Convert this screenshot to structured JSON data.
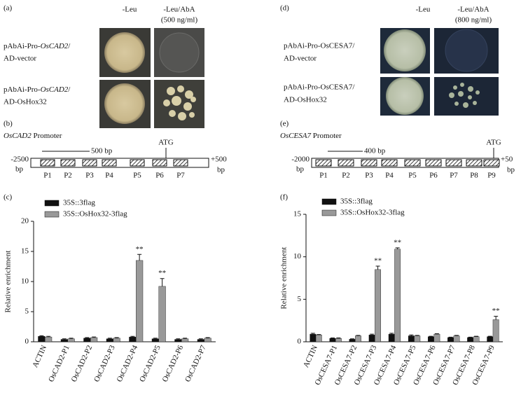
{
  "panel_a": {
    "label": "(a)",
    "col1": "-Leu",
    "col2": "-Leu/AbA",
    "col2_conc": "(500 ng/ml)",
    "rows": [
      {
        "line1_prefix": "pAbAi-Pro-",
        "line1_gene": "OsCAD2",
        "line1_suffix": "/",
        "line2": "AD-vector"
      },
      {
        "line1_prefix": "pAbAi-Pro-",
        "line1_gene": "OsCAD2",
        "line1_suffix": "/",
        "line2": "AD-OsHox32"
      }
    ]
  },
  "panel_d": {
    "label": "(d)",
    "col1": "-Leu",
    "col2": "-Leu/AbA",
    "col2_conc": "(800 ng/ml)",
    "rows": [
      {
        "line1": "pAbAi-Pro-OsCESA7/",
        "line2": "AD-vector"
      },
      {
        "line1": "pAbAi-Pro-OsCESA7/",
        "line2": "AD-OsHox32"
      }
    ]
  },
  "panel_b": {
    "label": "(b)",
    "gene": "OsCAD2",
    "title": "Promoter",
    "scale": "500 bp",
    "start": "-2500",
    "start_unit": "bp",
    "atg": "ATG",
    "end": "+500",
    "end_unit": "bp",
    "elements": [
      "P1",
      "P2",
      "P3",
      "P4",
      "P5",
      "P6",
      "P7"
    ]
  },
  "panel_e": {
    "label": "(e)",
    "gene": "OsCESA7",
    "title": "Promoter",
    "scale": "400 bp",
    "start": "-2000",
    "start_unit": "bp",
    "atg": "ATG",
    "end": "+50",
    "end_unit": "bp",
    "elements": [
      "P1",
      "P2",
      "P3",
      "P4",
      "P5",
      "P6",
      "P7",
      "P8",
      "P9"
    ]
  },
  "chart_data": [
    {
      "type": "bar",
      "panel_label": "(c)",
      "y_label": "Relative enrichment",
      "categories": [
        "ACTIN",
        "OsCAD2-P1",
        "OsCAD2-P2",
        "OsCAD2-P3",
        "OsCAD2-P4",
        "OsCAD2-P5",
        "OsCAD2-P6",
        "OsCAD2-P7"
      ],
      "series": [
        {
          "name": "35S::3flag",
          "color": "#111111",
          "values": [
            0.9,
            0.4,
            0.6,
            0.5,
            0.8,
            0.5,
            0.4,
            0.4
          ],
          "errors": [
            0.1,
            0.1,
            0.1,
            0.1,
            0.1,
            0.1,
            0.1,
            0.1
          ]
        },
        {
          "name": "35S::OsHox32-3flag",
          "color": "#999999",
          "values": [
            0.8,
            0.5,
            0.7,
            0.6,
            13.5,
            9.2,
            0.5,
            0.6
          ],
          "errors": [
            0.1,
            0.1,
            0.1,
            0.1,
            1.0,
            1.3,
            0.1,
            0.1
          ]
        }
      ],
      "ylim": [
        0,
        20
      ],
      "yticks": [
        0,
        5,
        10,
        15,
        20
      ],
      "annotations": [
        {
          "text": "**",
          "category": "OsCAD2-P4"
        },
        {
          "text": "**",
          "category": "OsCAD2-P5"
        }
      ]
    },
    {
      "type": "bar",
      "panel_label": "(f)",
      "y_label": "Relative enrichment",
      "categories": [
        "ACTIN",
        "OsCESA7-P1",
        "OsCESA7-P2",
        "OsCESA7-P3",
        "OsCESA7-P4",
        "OsCESA7-P5",
        "OsCESA7-P6",
        "OsCESA7-P7",
        "OsCESA7-P8",
        "OsCESA7-P9"
      ],
      "series": [
        {
          "name": "35S::3flag",
          "color": "#111111",
          "values": [
            0.9,
            0.4,
            0.3,
            0.8,
            0.9,
            0.7,
            0.6,
            0.5,
            0.5,
            0.6
          ],
          "errors": [
            0.1,
            0.05,
            0.05,
            0.1,
            0.1,
            0.1,
            0.05,
            0.05,
            0.05,
            0.05
          ]
        },
        {
          "name": "35S::OsHox32-3flag",
          "color": "#999999",
          "values": [
            0.8,
            0.4,
            0.7,
            8.5,
            10.9,
            0.7,
            0.9,
            0.7,
            0.6,
            2.6
          ],
          "errors": [
            0.05,
            0.05,
            0.05,
            0.4,
            0.15,
            0.05,
            0.05,
            0.05,
            0.05,
            0.4
          ]
        }
      ],
      "ylim": [
        0,
        15
      ],
      "yticks": [
        0,
        5,
        10,
        15
      ],
      "annotations": [
        {
          "text": "**",
          "category": "OsCESA7-P3"
        },
        {
          "text": "**",
          "category": "OsCESA7-P4"
        },
        {
          "text": "**",
          "category": "OsCESA7-P9"
        }
      ]
    }
  ]
}
